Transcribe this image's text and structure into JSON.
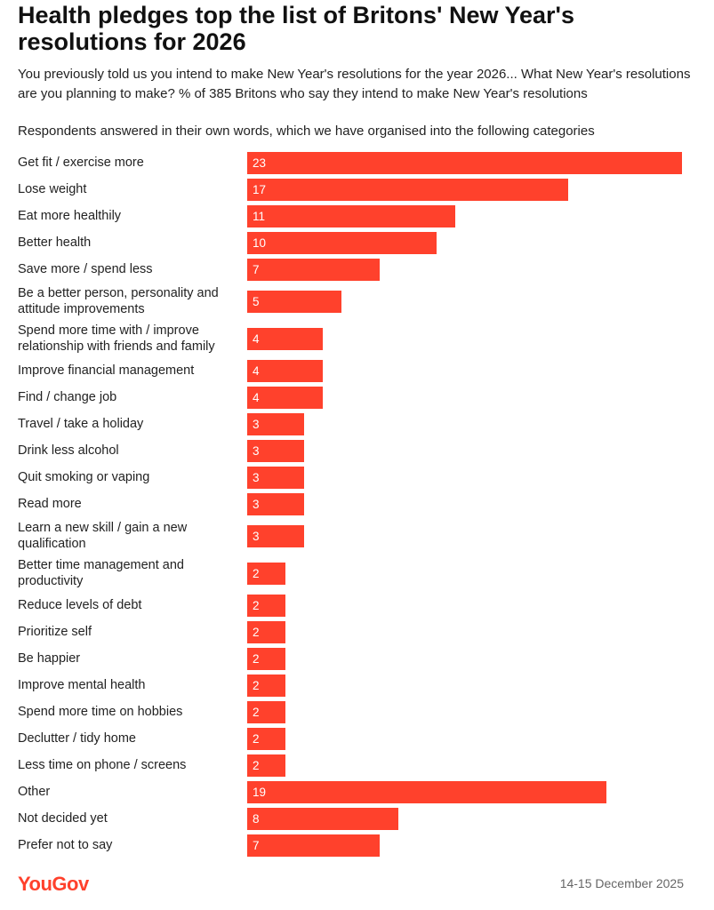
{
  "header": {
    "title": "Health pledges top the list of Britons' New Year's resolutions for 2026",
    "subtitle": "You previously told us you intend to make New Year's resolutions for the year 2026... What New Year's resolutions are you planning to make? % of 385 Britons who say they intend to make New Year's resolutions",
    "note": "Respondents answered in their own words, which we have organised into the following categories"
  },
  "chart_data": {
    "type": "bar",
    "orientation": "horizontal",
    "categories": [
      "Get fit / exercise more",
      "Lose weight",
      "Eat more healthily",
      "Better health",
      "Save more / spend less",
      "Be a better person, personality and attitude improvements",
      "Spend more time with / improve relationship with friends and family",
      "Improve financial management",
      "Find / change job",
      "Travel / take a holiday",
      "Drink less alcohol",
      "Quit smoking or vaping",
      "Read more",
      "Learn a new skill / gain a new qualification",
      "Better time management and productivity",
      "Reduce levels of debt",
      "Prioritize self",
      "Be happier",
      "Improve mental health",
      "Spend more time on hobbies",
      "Declutter / tidy home",
      "Less time on phone / screens",
      "Other",
      "Not decided yet",
      "Prefer not to say"
    ],
    "values": [
      23,
      17,
      11,
      10,
      7,
      5,
      4,
      4,
      4,
      3,
      3,
      3,
      3,
      3,
      2,
      2,
      2,
      2,
      2,
      2,
      2,
      2,
      19,
      8,
      7
    ],
    "xlim": [
      0,
      23
    ],
    "bar_color": "#ff412c",
    "value_label_color": "#ffffff",
    "grid": false,
    "legend": "none"
  },
  "footer": {
    "logo": "YouGov",
    "logo_color": "#ff412c",
    "date": "14-15 December 2025"
  }
}
